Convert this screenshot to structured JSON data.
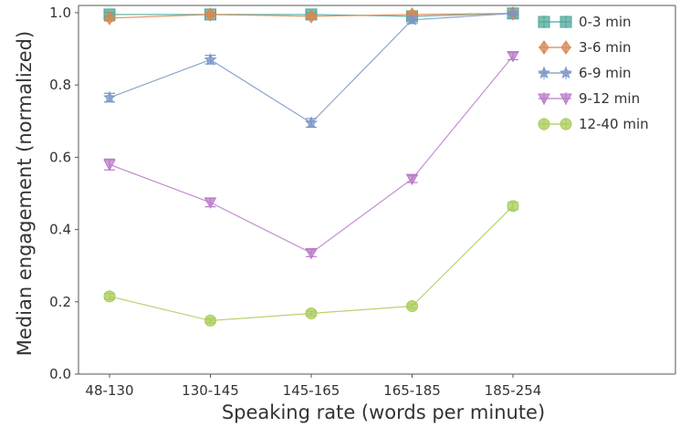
{
  "chart_data": {
    "type": "line",
    "title": "",
    "xlabel": "Speaking rate (words per minute)",
    "ylabel": "Median engagement (normalized)",
    "categories": [
      "48-130",
      "130-145",
      "145-165",
      "165-185",
      "185-254"
    ],
    "ylim": [
      0,
      1.02
    ],
    "yticks": [
      "0.0",
      "0.2",
      "0.4",
      "0.6",
      "0.8",
      "1.0"
    ],
    "grid": false,
    "legend_position": "top-right",
    "series": [
      {
        "name": "0-3 min",
        "values": [
          0.995,
          0.995,
          0.995,
          0.99,
          0.998
        ],
        "error": [
          0.006,
          0.005,
          0.005,
          0.006,
          0.004
        ],
        "marker": "square",
        "color": "#4da89a"
      },
      {
        "name": "3-6 min",
        "values": [
          0.985,
          0.995,
          0.99,
          0.995,
          0.998
        ],
        "error": [
          0.008,
          0.006,
          0.006,
          0.006,
          0.004
        ],
        "marker": "diamond",
        "color": "#d98852"
      },
      {
        "name": "6-9 min",
        "values": [
          0.765,
          0.87,
          0.695,
          0.98,
          0.998
        ],
        "error": [
          0.012,
          0.012,
          0.012,
          0.01,
          0.004
        ],
        "marker": "star",
        "color": "#7a95c8"
      },
      {
        "name": "9-12 min",
        "values": [
          0.58,
          0.475,
          0.335,
          0.54,
          0.88
        ],
        "error": [
          0.015,
          0.012,
          0.01,
          0.01,
          0.01
        ],
        "marker": "triangle-down",
        "color": "#b97bc8"
      },
      {
        "name": "12-40 min",
        "values": [
          0.215,
          0.148,
          0.168,
          0.188,
          0.465
        ],
        "error": [
          0.008,
          0.006,
          0.006,
          0.006,
          0.01
        ],
        "marker": "circle",
        "color": "#a9cc5a"
      }
    ]
  }
}
